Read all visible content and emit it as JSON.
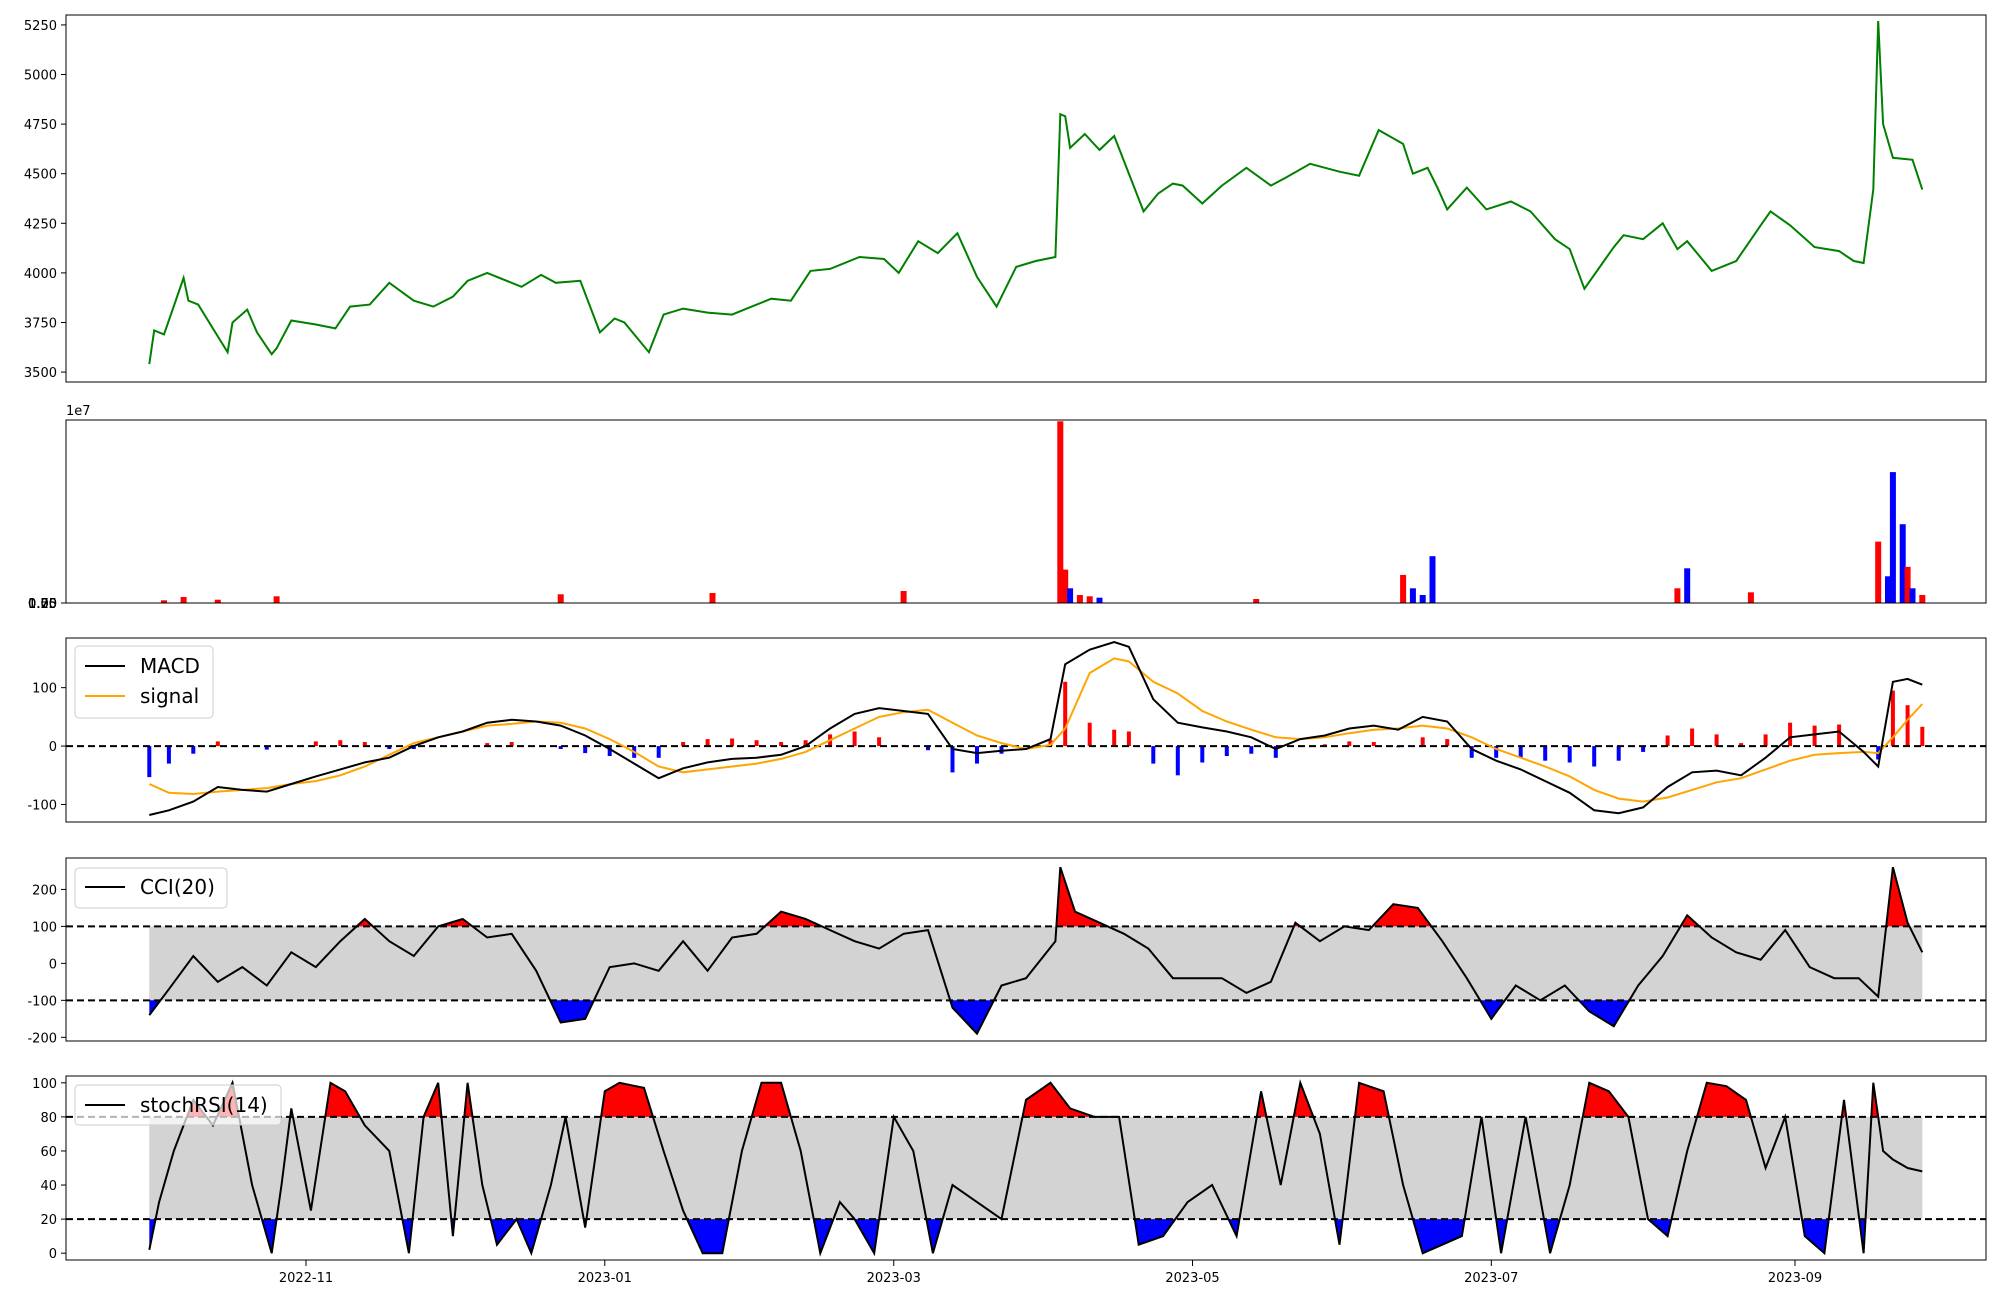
{
  "figure": {
    "x_tick_labels": [
      "2022-11",
      "2023-01",
      "2023-03",
      "2023-05",
      "2023-07",
      "2023-09"
    ],
    "x_tick_dates": [
      "2022-11-01",
      "2023-01-01",
      "2023-03-01",
      "2023-05-01",
      "2023-07-01",
      "2023-09-01"
    ],
    "x_range": [
      "2022-09-13",
      "2023-10-10"
    ],
    "data_range": [
      "2022-09-30",
      "2023-09-27"
    ]
  },
  "colors": {
    "price": "#008000",
    "up": "#ff0000",
    "down": "#0000ff",
    "line": "#000000",
    "signal": "#ffa500",
    "band": "#d3d3d3"
  },
  "chart_data": [
    {
      "type": "line",
      "panel": "price",
      "ylim": [
        3450,
        5300
      ],
      "yticks": [
        "3500",
        "3750",
        "4000",
        "4250",
        "4500",
        "4750",
        "5000",
        "5250"
      ],
      "x": [
        "2022-09-30",
        "2022-10-01",
        "2022-10-03",
        "2022-10-07",
        "2022-10-08",
        "2022-10-10",
        "2022-10-14",
        "2022-10-16",
        "2022-10-17",
        "2022-10-20",
        "2022-10-22",
        "2022-10-25",
        "2022-10-26",
        "2022-10-29",
        "2022-11-03",
        "2022-11-07",
        "2022-11-10",
        "2022-11-14",
        "2022-11-18",
        "2022-11-23",
        "2022-11-27",
        "2022-12-01",
        "2022-12-04",
        "2022-12-08",
        "2022-12-15",
        "2022-12-19",
        "2022-12-22",
        "2022-12-27",
        "2022-12-31",
        "2023-01-03",
        "2023-01-05",
        "2023-01-10",
        "2023-01-13",
        "2023-01-17",
        "2023-01-22",
        "2023-01-27",
        "2023-01-31",
        "2023-02-04",
        "2023-02-08",
        "2023-02-12",
        "2023-02-16",
        "2023-02-22",
        "2023-02-27",
        "2023-03-02",
        "2023-03-06",
        "2023-03-10",
        "2023-03-14",
        "2023-03-18",
        "2023-03-22",
        "2023-03-26",
        "2023-03-30",
        "2023-04-03",
        "2023-04-04",
        "2023-04-05",
        "2023-04-06",
        "2023-04-09",
        "2023-04-12",
        "2023-04-15",
        "2023-04-18",
        "2023-04-21",
        "2023-04-24",
        "2023-04-27",
        "2023-04-29",
        "2023-05-03",
        "2023-05-07",
        "2023-05-12",
        "2023-05-17",
        "2023-05-20",
        "2023-05-25",
        "2023-05-31",
        "2023-06-04",
        "2023-06-08",
        "2023-06-13",
        "2023-06-15",
        "2023-06-18",
        "2023-06-20",
        "2023-06-22",
        "2023-06-26",
        "2023-06-30",
        "2023-07-05",
        "2023-07-09",
        "2023-07-14",
        "2023-07-17",
        "2023-07-20",
        "2023-07-24",
        "2023-07-26",
        "2023-07-28",
        "2023-08-01",
        "2023-08-05",
        "2023-08-08",
        "2023-08-10",
        "2023-08-15",
        "2023-08-20",
        "2023-08-25",
        "2023-08-27",
        "2023-08-31",
        "2023-09-05",
        "2023-09-10",
        "2023-09-13",
        "2023-09-15",
        "2023-09-17",
        "2023-09-18",
        "2023-09-19",
        "2023-09-21",
        "2023-09-25",
        "2023-09-27"
      ],
      "y": [
        3540,
        3710,
        3690,
        3975,
        3860,
        3840,
        3680,
        3600,
        3750,
        3815,
        3700,
        3590,
        3620,
        3760,
        3740,
        3720,
        3830,
        3840,
        3950,
        3860,
        3830,
        3880,
        3960,
        4000,
        3930,
        3990,
        3950,
        3960,
        3700,
        3770,
        3750,
        3600,
        3790,
        3820,
        3800,
        3790,
        3830,
        3870,
        3860,
        4010,
        4020,
        4080,
        4070,
        4000,
        4160,
        4100,
        4200,
        3980,
        3830,
        4030,
        4060,
        4080,
        4800,
        4790,
        4630,
        4700,
        4620,
        4690,
        4500,
        4310,
        4400,
        4450,
        4440,
        4350,
        4440,
        4530,
        4440,
        4480,
        4550,
        4510,
        4490,
        4720,
        4650,
        4500,
        4530,
        4430,
        4320,
        4430,
        4320,
        4360,
        4310,
        4170,
        4120,
        3920,
        4060,
        4130,
        4190,
        4170,
        4250,
        4120,
        4160,
        4010,
        4060,
        4240,
        4310,
        4240,
        4130,
        4110,
        4060,
        4050,
        4420,
        5270,
        4750,
        4580,
        4570,
        4420
      ]
    },
    {
      "type": "bar",
      "panel": "volume",
      "ylim": [
        0,
        13700000
      ],
      "yticks": [
        "0.00",
        "0.25",
        "0.50",
        "0.75",
        "1.00",
        "1.25"
      ],
      "offset_text": "1e7",
      "x": [
        "2022-10-03",
        "2022-10-07",
        "2022-10-14",
        "2022-10-26",
        "2022-12-23",
        "2023-01-23",
        "2023-03-03",
        "2023-04-04",
        "2023-04-05",
        "2023-04-06",
        "2023-04-08",
        "2023-04-10",
        "2023-04-12",
        "2023-05-14",
        "2023-06-13",
        "2023-06-15",
        "2023-06-17",
        "2023-06-19",
        "2023-08-08",
        "2023-08-10",
        "2023-08-23",
        "2023-09-18",
        "2023-09-20",
        "2023-09-21",
        "2023-09-23",
        "2023-09-24",
        "2023-09-25",
        "2023-09-27"
      ],
      "values": [
        200000,
        450000,
        250000,
        500000,
        650000,
        750000,
        900000,
        13600000,
        2500000,
        1100000,
        600000,
        500000,
        400000,
        300000,
        2100000,
        1100000,
        600000,
        3500000,
        1100000,
        2600000,
        800000,
        4600000,
        2000000,
        9800000,
        5900000,
        2700000,
        1100000,
        600000
      ],
      "direction": [
        "up",
        "up",
        "up",
        "up",
        "up",
        "up",
        "up",
        "up",
        "up",
        "down",
        "up",
        "up",
        "down",
        "up",
        "up",
        "down",
        "down",
        "down",
        "up",
        "down",
        "up",
        "up",
        "down",
        "down",
        "down",
        "up",
        "down",
        "up"
      ]
    },
    {
      "type": "line",
      "panel": "macd",
      "ylim": [
        -130,
        185
      ],
      "yticks": [
        "-100",
        "0",
        "100"
      ],
      "legend": [
        "MACD",
        "signal"
      ],
      "legend_position": "top-left",
      "reference_lines": [
        0
      ],
      "x": [
        "2022-09-30",
        "2022-10-04",
        "2022-10-09",
        "2022-10-14",
        "2022-10-19",
        "2022-10-24",
        "2022-10-29",
        "2022-11-03",
        "2022-11-08",
        "2022-11-13",
        "2022-11-18",
        "2022-11-23",
        "2022-11-28",
        "2022-12-03",
        "2022-12-08",
        "2022-12-13",
        "2022-12-18",
        "2022-12-23",
        "2022-12-28",
        "2023-01-02",
        "2023-01-07",
        "2023-01-12",
        "2023-01-17",
        "2023-01-22",
        "2023-01-27",
        "2023-02-01",
        "2023-02-06",
        "2023-02-11",
        "2023-02-16",
        "2023-02-21",
        "2023-02-26",
        "2023-03-03",
        "2023-03-08",
        "2023-03-13",
        "2023-03-18",
        "2023-03-23",
        "2023-03-28",
        "2023-04-02",
        "2023-04-05",
        "2023-04-10",
        "2023-04-15",
        "2023-04-18",
        "2023-04-23",
        "2023-04-28",
        "2023-05-03",
        "2023-05-08",
        "2023-05-13",
        "2023-05-18",
        "2023-05-23",
        "2023-05-28",
        "2023-06-02",
        "2023-06-07",
        "2023-06-12",
        "2023-06-17",
        "2023-06-22",
        "2023-06-27",
        "2023-07-02",
        "2023-07-07",
        "2023-07-12",
        "2023-07-17",
        "2023-07-22",
        "2023-07-27",
        "2023-08-01",
        "2023-08-06",
        "2023-08-11",
        "2023-08-16",
        "2023-08-21",
        "2023-08-26",
        "2023-08-31",
        "2023-09-05",
        "2023-09-10",
        "2023-09-15",
        "2023-09-18",
        "2023-09-21",
        "2023-09-24",
        "2023-09-27"
      ],
      "macd": [
        -118,
        -110,
        -95,
        -70,
        -75,
        -78,
        -65,
        -52,
        -40,
        -28,
        -20,
        0,
        15,
        25,
        40,
        45,
        42,
        35,
        18,
        -5,
        -30,
        -55,
        -38,
        -28,
        -22,
        -20,
        -15,
        0,
        30,
        55,
        65,
        60,
        55,
        -5,
        -12,
        -8,
        -5,
        12,
        140,
        165,
        178,
        170,
        80,
        40,
        32,
        25,
        15,
        -5,
        12,
        18,
        30,
        35,
        28,
        50,
        42,
        -5,
        -25,
        -40,
        -60,
        -80,
        -110,
        -115,
        -105,
        -70,
        -45,
        -42,
        -50,
        -20,
        15,
        20,
        25,
        -10,
        -35,
        110,
        115,
        105
      ],
      "signal": [
        -65,
        -80,
        -82,
        -78,
        -75,
        -72,
        -65,
        -60,
        -50,
        -35,
        -15,
        5,
        15,
        25,
        35,
        38,
        42,
        40,
        30,
        12,
        -10,
        -35,
        -45,
        -40,
        -35,
        -30,
        -22,
        -10,
        10,
        30,
        50,
        58,
        62,
        40,
        18,
        5,
        -5,
        2,
        30,
        125,
        150,
        145,
        110,
        90,
        60,
        42,
        28,
        15,
        12,
        15,
        22,
        28,
        30,
        35,
        30,
        15,
        -5,
        -20,
        -35,
        -52,
        -75,
        -90,
        -95,
        -88,
        -75,
        -62,
        -55,
        -40,
        -25,
        -15,
        -12,
        -10,
        -12,
        15,
        45,
        72
      ]
    },
    {
      "type": "area",
      "panel": "cci",
      "ylim": [
        -210,
        285
      ],
      "yticks": [
        "-200",
        "-100",
        "0",
        "100",
        "200"
      ],
      "legend": [
        "CCI(20)"
      ],
      "legend_position": "top-left",
      "reference_lines": [
        100,
        -100
      ],
      "x": [
        "2022-09-30",
        "2022-10-04",
        "2022-10-09",
        "2022-10-14",
        "2022-10-19",
        "2022-10-24",
        "2022-10-29",
        "2022-11-03",
        "2022-11-08",
        "2022-11-13",
        "2022-11-18",
        "2022-11-23",
        "2022-11-28",
        "2022-12-03",
        "2022-12-08",
        "2022-12-13",
        "2022-12-18",
        "2022-12-23",
        "2022-12-28",
        "2023-01-02",
        "2023-01-07",
        "2023-01-12",
        "2023-01-17",
        "2023-01-22",
        "2023-01-27",
        "2023-02-01",
        "2023-02-06",
        "2023-02-11",
        "2023-02-16",
        "2023-02-21",
        "2023-02-26",
        "2023-03-03",
        "2023-03-08",
        "2023-03-13",
        "2023-03-18",
        "2023-03-23",
        "2023-03-28",
        "2023-04-03",
        "2023-04-04",
        "2023-04-07",
        "2023-04-12",
        "2023-04-17",
        "2023-04-22",
        "2023-04-27",
        "2023-05-02",
        "2023-05-07",
        "2023-05-12",
        "2023-05-17",
        "2023-05-22",
        "2023-05-27",
        "2023-06-01",
        "2023-06-06",
        "2023-06-11",
        "2023-06-16",
        "2023-06-21",
        "2023-06-26",
        "2023-07-01",
        "2023-07-06",
        "2023-07-11",
        "2023-07-16",
        "2023-07-21",
        "2023-07-26",
        "2023-07-31",
        "2023-08-05",
        "2023-08-10",
        "2023-08-15",
        "2023-08-20",
        "2023-08-25",
        "2023-08-30",
        "2023-09-04",
        "2023-09-09",
        "2023-09-14",
        "2023-09-18",
        "2023-09-21",
        "2023-09-24",
        "2023-09-27"
      ],
      "values": [
        -140,
        -70,
        20,
        -50,
        -10,
        -60,
        30,
        -10,
        60,
        120,
        60,
        20,
        100,
        120,
        70,
        80,
        -20,
        -160,
        -150,
        -10,
        0,
        -20,
        60,
        -20,
        70,
        80,
        140,
        120,
        90,
        60,
        40,
        80,
        90,
        -120,
        -190,
        -60,
        -40,
        60,
        260,
        140,
        110,
        80,
        40,
        -40,
        -40,
        -40,
        -80,
        -50,
        110,
        60,
        100,
        90,
        160,
        150,
        60,
        -40,
        -150,
        -60,
        -100,
        -60,
        -130,
        -170,
        -60,
        20,
        130,
        70,
        30,
        10,
        90,
        -10,
        -40,
        -40,
        -90,
        260,
        110,
        30
      ]
    },
    {
      "type": "area",
      "panel": "stochrsi",
      "ylim": [
        -4,
        104
      ],
      "yticks": [
        "0",
        "20",
        "40",
        "60",
        "80",
        "100"
      ],
      "legend": [
        "stochRSI(14)"
      ],
      "legend_position": "top-left",
      "reference_lines": [
        80,
        20
      ],
      "x": [
        "2022-09-30",
        "2022-10-02",
        "2022-10-05",
        "2022-10-09",
        "2022-10-13",
        "2022-10-17",
        "2022-10-21",
        "2022-10-25",
        "2022-10-27",
        "2022-10-29",
        "2022-11-02",
        "2022-11-06",
        "2022-11-09",
        "2022-11-13",
        "2022-11-18",
        "2022-11-22",
        "2022-11-25",
        "2022-11-28",
        "2022-12-01",
        "2022-12-04",
        "2022-12-07",
        "2022-12-10",
        "2022-12-14",
        "2022-12-17",
        "2022-12-21",
        "2022-12-24",
        "2022-12-28",
        "2023-01-01",
        "2023-01-04",
        "2023-01-09",
        "2023-01-13",
        "2023-01-17",
        "2023-01-21",
        "2023-01-25",
        "2023-01-29",
        "2023-02-02",
        "2023-02-06",
        "2023-02-10",
        "2023-02-14",
        "2023-02-18",
        "2023-02-21",
        "2023-02-25",
        "2023-03-01",
        "2023-03-05",
        "2023-03-09",
        "2023-03-13",
        "2023-03-18",
        "2023-03-23",
        "2023-03-28",
        "2023-04-02",
        "2023-04-06",
        "2023-04-11",
        "2023-04-16",
        "2023-04-20",
        "2023-04-25",
        "2023-04-30",
        "2023-05-05",
        "2023-05-10",
        "2023-05-15",
        "2023-05-19",
        "2023-05-23",
        "2023-05-27",
        "2023-05-31",
        "2023-06-04",
        "2023-06-09",
        "2023-06-13",
        "2023-06-17",
        "2023-06-21",
        "2023-06-25",
        "2023-06-29",
        "2023-07-03",
        "2023-07-08",
        "2023-07-13",
        "2023-07-17",
        "2023-07-21",
        "2023-07-25",
        "2023-07-29",
        "2023-08-02",
        "2023-08-06",
        "2023-08-10",
        "2023-08-14",
        "2023-08-18",
        "2023-08-22",
        "2023-08-26",
        "2023-08-30",
        "2023-09-03",
        "2023-09-07",
        "2023-09-11",
        "2023-09-15",
        "2023-09-17",
        "2023-09-19",
        "2023-09-21",
        "2023-09-24",
        "2023-09-27"
      ],
      "values": [
        2,
        30,
        60,
        90,
        75,
        100,
        40,
        0,
        40,
        85,
        25,
        100,
        95,
        75,
        60,
        0,
        80,
        100,
        10,
        100,
        40,
        5,
        20,
        0,
        40,
        80,
        15,
        95,
        100,
        97,
        60,
        25,
        0,
        0,
        60,
        100,
        100,
        60,
        0,
        30,
        20,
        0,
        80,
        60,
        0,
        40,
        30,
        20,
        90,
        100,
        85,
        80,
        80,
        5,
        10,
        30,
        40,
        10,
        95,
        40,
        100,
        70,
        5,
        100,
        95,
        40,
        0,
        5,
        10,
        80,
        0,
        80,
        0,
        40,
        100,
        95,
        80,
        20,
        10,
        60,
        100,
        98,
        90,
        50,
        80,
        10,
        0,
        90,
        0,
        100,
        60,
        55,
        50,
        48
      ]
    }
  ]
}
